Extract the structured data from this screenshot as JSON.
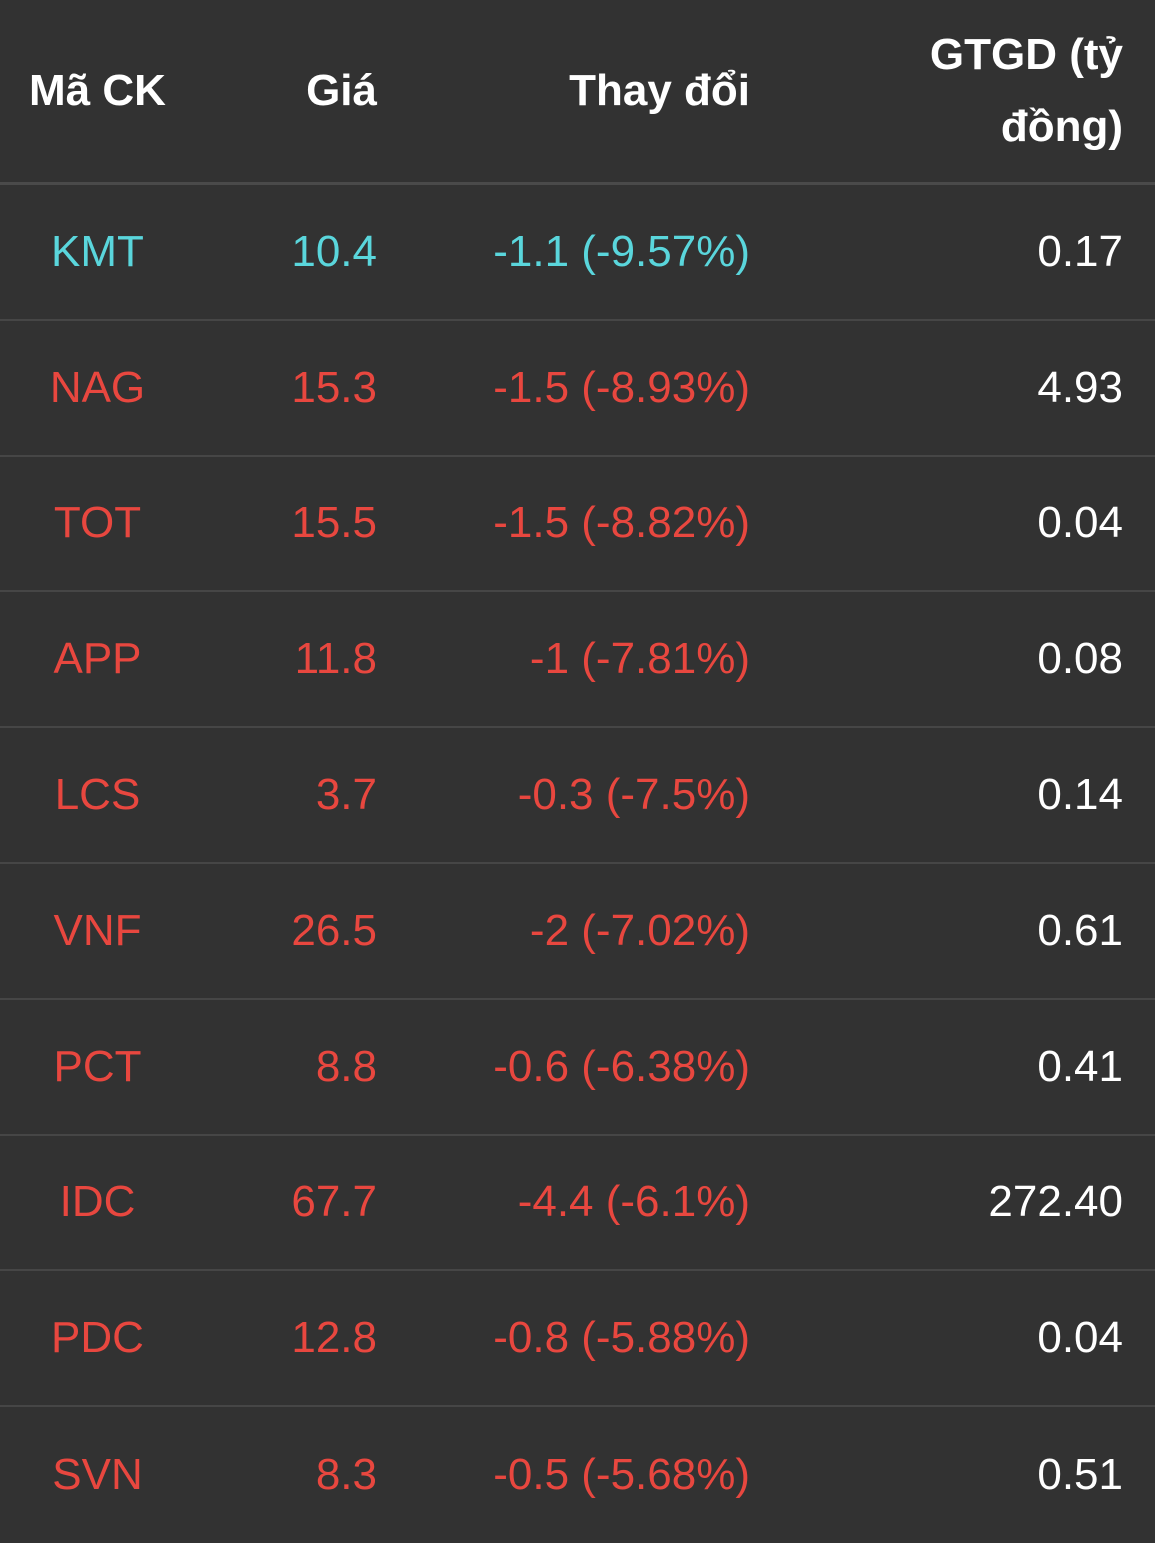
{
  "colors": {
    "background": "#323232",
    "divider": "#464646",
    "header_text": "#ffffff",
    "floor_down": "#5ad6dc",
    "down": "#e8473f",
    "neutral_value": "#ffffff"
  },
  "header": {
    "code": "Mã CK",
    "price": "Giá",
    "change": "Thay đổi",
    "value": "GTGD (tỷ đồng)"
  },
  "rows": [
    {
      "code": "KMT",
      "price": "10.4",
      "change": "-1.1 (-9.57%)",
      "value": "0.17",
      "status": "floor"
    },
    {
      "code": "NAG",
      "price": "15.3",
      "change": "-1.5 (-8.93%)",
      "value": "4.93",
      "status": "down"
    },
    {
      "code": "TOT",
      "price": "15.5",
      "change": "-1.5 (-8.82%)",
      "value": "0.04",
      "status": "down"
    },
    {
      "code": "APP",
      "price": "11.8",
      "change": "-1 (-7.81%)",
      "value": "0.08",
      "status": "down"
    },
    {
      "code": "LCS",
      "price": "3.7",
      "change": "-0.3 (-7.5%)",
      "value": "0.14",
      "status": "down"
    },
    {
      "code": "VNF",
      "price": "26.5",
      "change": "-2 (-7.02%)",
      "value": "0.61",
      "status": "down"
    },
    {
      "code": "PCT",
      "price": "8.8",
      "change": "-0.6 (-6.38%)",
      "value": "0.41",
      "status": "down"
    },
    {
      "code": "IDC",
      "price": "67.7",
      "change": "-4.4 (-6.1%)",
      "value": "272.40",
      "status": "down"
    },
    {
      "code": "PDC",
      "price": "12.8",
      "change": "-0.8 (-5.88%)",
      "value": "0.04",
      "status": "down"
    },
    {
      "code": "SVN",
      "price": "8.3",
      "change": "-0.5 (-5.68%)",
      "value": "0.51",
      "status": "down"
    }
  ]
}
